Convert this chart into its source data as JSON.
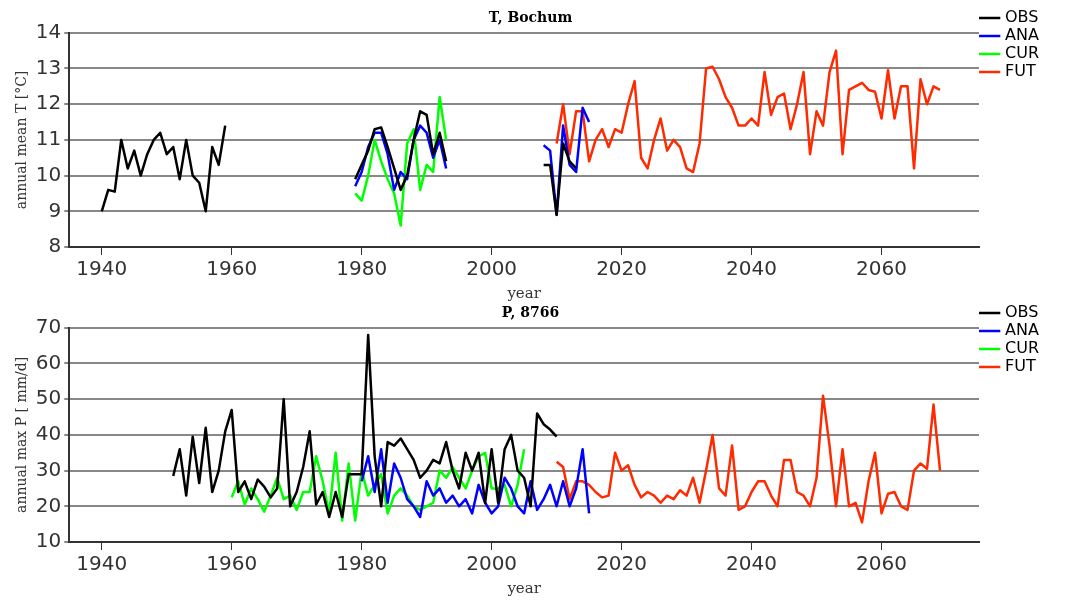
{
  "chart_data": [
    {
      "type": "line",
      "title": "T, Bochum",
      "xlabel": "year",
      "ylabel": "annual mean T [°C]",
      "xlim": [
        1935,
        2075
      ],
      "xticks": [
        1940,
        1960,
        1980,
        2000,
        2020,
        2040,
        2060
      ],
      "ylim": [
        8,
        14
      ],
      "yticks": [
        8,
        9,
        10,
        11,
        12,
        13,
        14
      ],
      "grid": "y",
      "legend": "right",
      "line_style": "solid",
      "marker": "none",
      "series": [
        {
          "name": "OBS",
          "color": "#000000",
          "x": [
            1940,
            1941,
            1942,
            1943,
            1944,
            1945,
            1946,
            1947,
            1948,
            1949,
            1950,
            1951,
            1952,
            1953,
            1954,
            1955,
            1956,
            1957,
            1958,
            1959,
            1960,
            1979,
            1980,
            1981,
            1982,
            1983,
            1984,
            1985,
            1986,
            1987,
            1988,
            1989,
            1990,
            1991,
            1992,
            1993,
            1994,
            2008,
            2009,
            2010,
            2011,
            2012,
            2013
          ],
          "values": [
            9.0,
            9.6,
            9.55,
            11.0,
            10.2,
            10.7,
            10.0,
            10.6,
            11.0,
            11.2,
            10.6,
            10.8,
            9.9,
            11.0,
            10.0,
            9.8,
            9.0,
            10.8,
            10.3,
            11.4,
            null,
            9.9,
            10.3,
            10.7,
            11.3,
            11.35,
            10.8,
            10.2,
            9.6,
            10.0,
            11.0,
            11.8,
            11.7,
            10.6,
            11.2,
            10.4,
            null,
            10.3,
            10.3,
            8.9,
            10.9,
            10.4,
            10.2
          ]
        },
        {
          "name": "ANA",
          "color": "#0000ff",
          "x": [
            1979,
            1980,
            1981,
            1982,
            1983,
            1984,
            1985,
            1986,
            1987,
            1988,
            1989,
            1990,
            1991,
            1992,
            1993,
            1994,
            2008,
            2009,
            2010,
            2011,
            2012,
            2013,
            2014,
            2015
          ],
          "values": [
            9.7,
            10.1,
            10.8,
            11.2,
            11.2,
            10.6,
            9.6,
            10.1,
            9.9,
            11.0,
            11.4,
            11.2,
            10.5,
            11.0,
            10.2,
            null,
            10.85,
            10.7,
            8.9,
            11.4,
            10.3,
            10.1,
            11.9,
            11.5
          ]
        },
        {
          "name": "CUR",
          "color": "#00ff00",
          "x": [
            1979,
            1980,
            1981,
            1982,
            1983,
            1984,
            1985,
            1986,
            1987,
            1988,
            1989,
            1990,
            1991,
            1992,
            1993
          ],
          "values": [
            9.5,
            9.3,
            10.0,
            11.0,
            10.4,
            9.9,
            9.5,
            8.6,
            10.9,
            11.3,
            9.6,
            10.3,
            10.1,
            12.2,
            11.0
          ]
        },
        {
          "name": "FUT",
          "color": "#ff2a00",
          "x": [
            2010,
            2011,
            2012,
            2013,
            2014,
            2015,
            2016,
            2017,
            2018,
            2019,
            2020,
            2021,
            2022,
            2023,
            2024,
            2025,
            2026,
            2027,
            2028,
            2029,
            2030,
            2031,
            2032,
            2033,
            2034,
            2035,
            2036,
            2037,
            2038,
            2039,
            2040,
            2041,
            2042,
            2043,
            2044,
            2045,
            2046,
            2047,
            2048,
            2049,
            2050,
            2051,
            2052,
            2053,
            2054,
            2055,
            2056,
            2057,
            2058,
            2059,
            2060,
            2061,
            2062,
            2063,
            2064,
            2065,
            2066,
            2067,
            2068,
            2069
          ],
          "values": [
            10.9,
            12.0,
            10.6,
            11.8,
            11.8,
            10.4,
            11.0,
            11.3,
            10.8,
            11.3,
            11.2,
            12.0,
            12.65,
            10.5,
            10.2,
            11.0,
            11.6,
            10.7,
            11.0,
            10.8,
            10.2,
            10.1,
            10.9,
            13.0,
            13.05,
            12.7,
            12.2,
            11.9,
            11.4,
            11.4,
            11.6,
            11.4,
            12.9,
            11.7,
            12.2,
            12.3,
            11.3,
            12.0,
            12.9,
            10.6,
            11.8,
            11.4,
            12.9,
            13.5,
            10.6,
            12.4,
            12.5,
            12.6,
            12.4,
            12.35,
            11.6,
            12.95,
            11.6,
            12.5,
            12.5,
            10.2,
            12.7,
            12.0,
            12.5,
            12.4
          ]
        }
      ]
    },
    {
      "type": "line",
      "title": "P, 8766",
      "xlabel": "year",
      "ylabel": "annual max P [ mm/d]",
      "xlim": [
        1935,
        2075
      ],
      "xticks": [
        1940,
        1960,
        1980,
        2000,
        2020,
        2040,
        2060
      ],
      "ylim": [
        10,
        70
      ],
      "yticks": [
        10,
        20,
        30,
        40,
        50,
        60,
        70
      ],
      "grid": "y",
      "legend": "right",
      "line_style": "solid",
      "marker": "none",
      "series": [
        {
          "name": "OBS",
          "color": "#000000",
          "x": [
            1951,
            1952,
            1953,
            1954,
            1955,
            1956,
            1957,
            1958,
            1959,
            1960,
            1961,
            1962,
            1963,
            1964,
            1965,
            1966,
            1967,
            1968,
            1969,
            1970,
            1971,
            1972,
            1973,
            1974,
            1975,
            1976,
            1977,
            1978,
            1979,
            1980,
            1981,
            1982,
            1983,
            1984,
            1985,
            1986,
            1987,
            1988,
            1989,
            1990,
            1991,
            1992,
            1993,
            1994,
            1995,
            1996,
            1997,
            1998,
            1999,
            2000,
            2001,
            2002,
            2003,
            2004,
            2005,
            2006,
            2007,
            2008,
            2009,
            2010
          ],
          "values": [
            28.5,
            36,
            23,
            39.5,
            26.5,
            42,
            24,
            30,
            41,
            47,
            24,
            27,
            22,
            27.5,
            25.5,
            22.5,
            25,
            50,
            20,
            24,
            31,
            41,
            20.5,
            24,
            17,
            24,
            17,
            29,
            29,
            29,
            68,
            34,
            20,
            38,
            37,
            39,
            36,
            33,
            28,
            30,
            33,
            32,
            38,
            30,
            25,
            35,
            30,
            35,
            21,
            36,
            21,
            36,
            40,
            30,
            28,
            20,
            46,
            43,
            41.5,
            39.5
          ]
        },
        {
          "name": "ANA",
          "color": "#0000ff",
          "x": [
            1980,
            1981,
            1982,
            1983,
            1984,
            1985,
            1986,
            1987,
            1988,
            1989,
            1990,
            1991,
            1992,
            1993,
            1994,
            1995,
            1996,
            1997,
            1998,
            1999,
            2000,
            2001,
            2002,
            2003,
            2004,
            2005,
            2006,
            2007,
            2008,
            2009,
            2010,
            2011,
            2012,
            2013,
            2014,
            2015
          ],
          "values": [
            27,
            34,
            24,
            36,
            21,
            32,
            28,
            22,
            20,
            17,
            27,
            23,
            25,
            21,
            23,
            20,
            22,
            18,
            26,
            21,
            18,
            20,
            28,
            25,
            20,
            18,
            27,
            19,
            22,
            26,
            20,
            27,
            20,
            25,
            36,
            18
          ]
        },
        {
          "name": "CUR",
          "color": "#00ff00",
          "x": [
            1960,
            1961,
            1962,
            1963,
            1964,
            1965,
            1966,
            1967,
            1968,
            1969,
            1970,
            1971,
            1972,
            1973,
            1974,
            1975,
            1976,
            1977,
            1978,
            1979,
            1980,
            1981,
            1982,
            1983,
            1984,
            1985,
            1986,
            1987,
            1988,
            1989,
            1990,
            1991,
            1992,
            1993,
            1994,
            1995,
            1996,
            1997,
            1998,
            1999,
            2000,
            2001,
            2002,
            2003,
            2004,
            2005
          ],
          "values": [
            22.5,
            27,
            20.5,
            25,
            22,
            18.5,
            23,
            28,
            22,
            23,
            19,
            24,
            24,
            34,
            27,
            18,
            35,
            16,
            32,
            16,
            30,
            23,
            26,
            29,
            18,
            23,
            25,
            23,
            20,
            19,
            20,
            21,
            30,
            28,
            31,
            28,
            25,
            30,
            34,
            35,
            25,
            25,
            26,
            20,
            26,
            36
          ]
        },
        {
          "name": "FUT",
          "color": "#ff2a00",
          "x": [
            2010,
            2011,
            2012,
            2013,
            2014,
            2015,
            2016,
            2017,
            2018,
            2019,
            2020,
            2021,
            2022,
            2023,
            2024,
            2025,
            2026,
            2027,
            2028,
            2029,
            2030,
            2031,
            2032,
            2033,
            2034,
            2035,
            2036,
            2037,
            2038,
            2039,
            2040,
            2041,
            2042,
            2043,
            2044,
            2045,
            2046,
            2047,
            2048,
            2049,
            2050,
            2051,
            2052,
            2053,
            2054,
            2055,
            2056,
            2057,
            2058,
            2059,
            2060,
            2061,
            2062,
            2063,
            2064,
            2065,
            2066,
            2067,
            2068,
            2069
          ],
          "values": [
            32.5,
            31,
            22,
            27,
            27,
            26,
            24,
            22.5,
            23,
            35,
            30,
            31.5,
            26,
            22.5,
            24,
            23,
            21,
            23,
            22,
            24.5,
            23,
            28,
            21,
            30,
            40,
            25,
            23,
            37,
            19,
            20,
            24,
            27,
            27,
            23,
            20,
            33,
            33,
            24,
            23,
            20,
            28,
            51,
            37,
            20,
            36,
            20,
            21,
            15.5,
            27,
            35,
            18,
            23.5,
            24,
            20,
            19,
            30,
            32,
            30.5,
            48.5,
            30
          ]
        }
      ]
    }
  ]
}
